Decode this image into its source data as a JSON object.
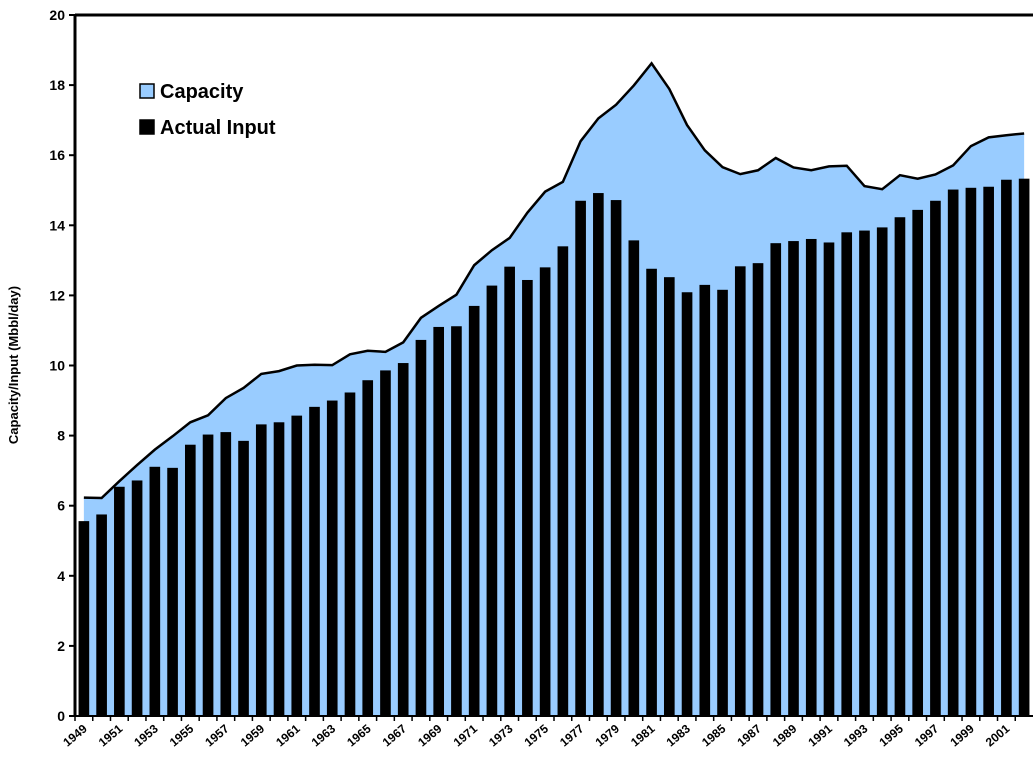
{
  "chart_data": {
    "type": "bar",
    "y_label": "Capacity/Input (Mbbl/day)",
    "categories": [
      "1949",
      null,
      "1951",
      null,
      "1953",
      null,
      "1955",
      null,
      "1957",
      null,
      "1959",
      null,
      "1961",
      null,
      "1963",
      null,
      "1965",
      null,
      "1967",
      null,
      "1969",
      null,
      "1971",
      null,
      "1973",
      null,
      "1975",
      null,
      "1977",
      null,
      "1979",
      null,
      "1981",
      null,
      "1983",
      null,
      "1985",
      null,
      "1987",
      null,
      "1989",
      null,
      "1991",
      null,
      "1993",
      null,
      "1995",
      null,
      "1997",
      null,
      "1999",
      null,
      "2001",
      null
    ],
    "series": [
      {
        "name": "Capacity",
        "type": "area",
        "color": "#99ccff",
        "values": [
          6.23,
          6.22,
          6.7,
          7.16,
          7.6,
          7.98,
          8.38,
          8.58,
          9.07,
          9.36,
          9.76,
          9.84,
          10.0,
          10.02,
          10.01,
          10.32,
          10.42,
          10.39,
          10.66,
          11.36,
          11.7,
          12.02,
          12.86,
          13.29,
          13.64,
          14.36,
          14.96,
          15.24,
          16.4,
          17.05,
          17.44,
          17.99,
          18.62,
          17.89,
          16.86,
          16.14,
          15.66,
          15.46,
          15.57,
          15.92,
          15.65,
          15.57,
          15.68,
          15.7,
          15.12,
          15.03,
          15.43,
          15.33,
          15.45,
          15.71,
          16.26,
          16.51,
          16.57,
          16.62
        ]
      },
      {
        "name": "Actual Input",
        "type": "bar",
        "color": "#000000",
        "values": [
          5.56,
          5.75,
          6.54,
          6.72,
          7.11,
          7.08,
          7.74,
          8.03,
          8.1,
          7.85,
          8.32,
          8.38,
          8.57,
          8.82,
          9.0,
          9.23,
          9.58,
          9.86,
          10.07,
          10.73,
          11.1,
          11.12,
          11.7,
          12.28,
          12.82,
          12.44,
          12.8,
          13.4,
          14.7,
          14.92,
          14.72,
          13.57,
          12.76,
          12.52,
          12.09,
          12.3,
          12.16,
          12.83,
          12.92,
          13.49,
          13.55,
          13.61,
          13.51,
          13.8,
          13.85,
          13.94,
          14.23,
          14.44,
          14.7,
          15.02,
          15.07,
          15.1,
          15.3,
          15.33
        ]
      }
    ],
    "ylim": [
      0,
      20
    ],
    "yticks": [
      0,
      2,
      4,
      6,
      8,
      10,
      12,
      14,
      16,
      18,
      20
    ],
    "grid": false,
    "legend": "upper left"
  }
}
